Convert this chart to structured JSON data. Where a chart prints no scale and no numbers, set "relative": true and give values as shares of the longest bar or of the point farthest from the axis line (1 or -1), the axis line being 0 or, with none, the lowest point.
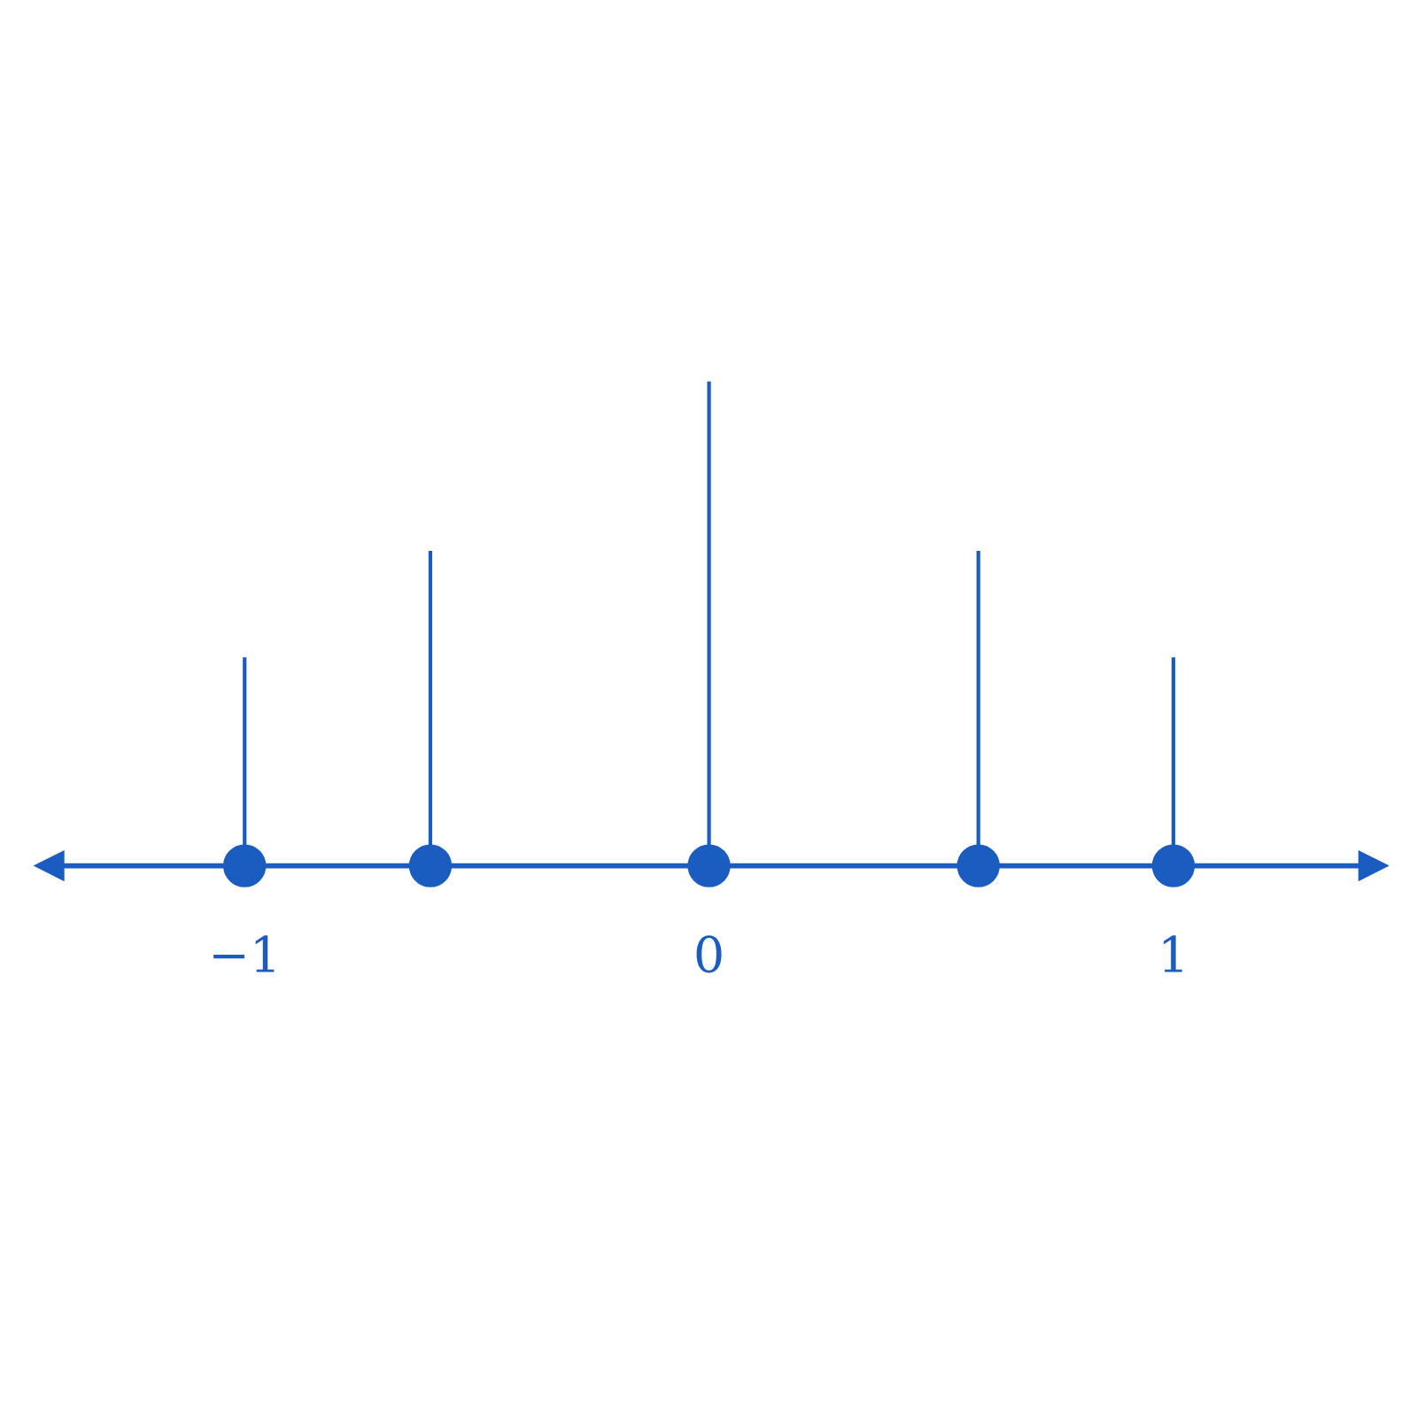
{
  "chart_data": {
    "type": "bar",
    "relative": true,
    "x": [
      -1,
      -0.6,
      0,
      0.58,
      1
    ],
    "series": [
      {
        "color": "#1a5cbf",
        "values": [
          0.43,
          0.65,
          1,
          0.65,
          0.43
        ]
      },
      {
        "type": "scatter",
        "color": "#1a5cbf",
        "marker": "circle",
        "values": [
          0,
          0,
          0,
          0,
          0
        ]
      }
    ],
    "xlim": [
      -1.42,
      1.43
    ],
    "xticks": [
      {
        "value": -1,
        "label": "−1"
      },
      0,
      1
    ],
    "tick_labels": "x",
    "grid": false,
    "legend": false
  }
}
